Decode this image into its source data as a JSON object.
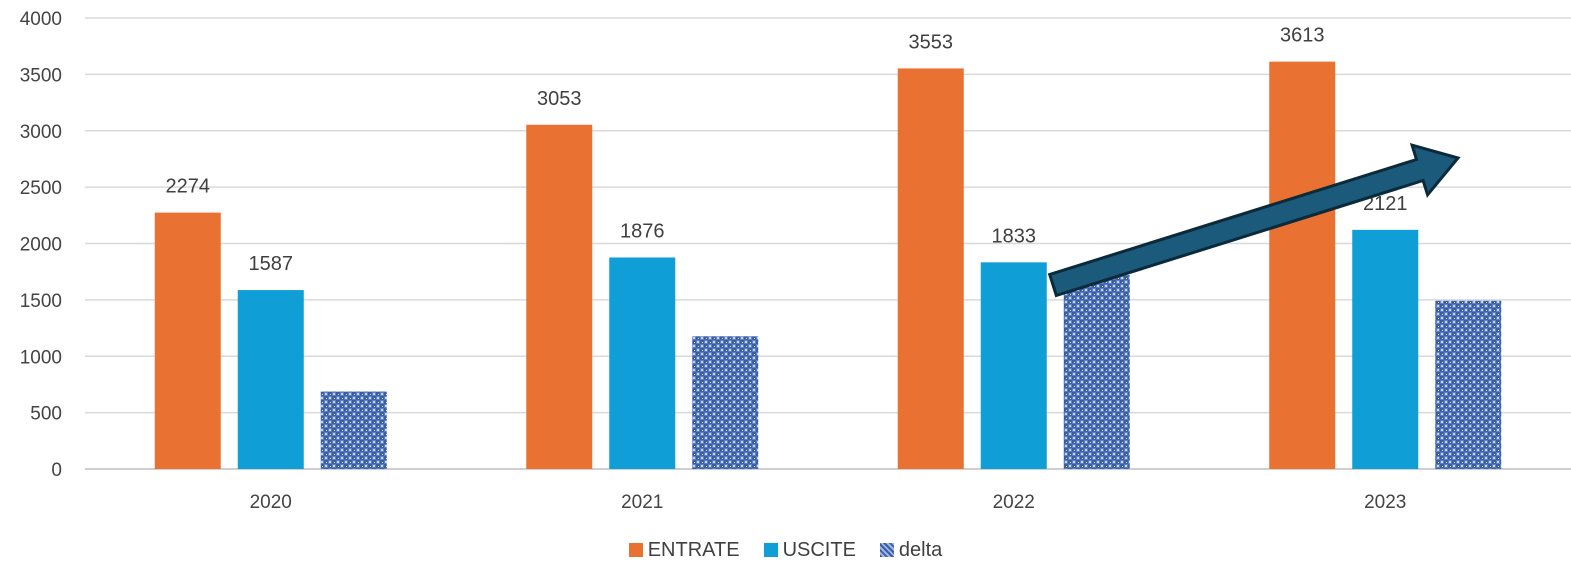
{
  "chart_data": {
    "type": "bar",
    "categories": [
      "2020",
      "2021",
      "2022",
      "2023"
    ],
    "series": [
      {
        "name": "ENTRATE",
        "values": [
          2274,
          3053,
          3553,
          3613
        ],
        "color": "#E97132",
        "show_labels": true
      },
      {
        "name": "USCITE",
        "values": [
          1587,
          1876,
          1833,
          2121
        ],
        "color": "#0F9ED5",
        "show_labels": true
      },
      {
        "name": "delta",
        "values": [
          687,
          1177,
          1720,
          1492
        ],
        "color": "#4A6FB5",
        "pattern": "textured",
        "show_labels": false
      }
    ],
    "yticks": [
      0,
      500,
      1000,
      1500,
      2000,
      2500,
      3000,
      3500,
      4000
    ],
    "ylim": [
      0,
      4000
    ],
    "grid": true,
    "legend_position": "bottom-center",
    "annotation": {
      "type": "arrow",
      "color": "#1B5A7A",
      "direction": "up-right"
    }
  }
}
